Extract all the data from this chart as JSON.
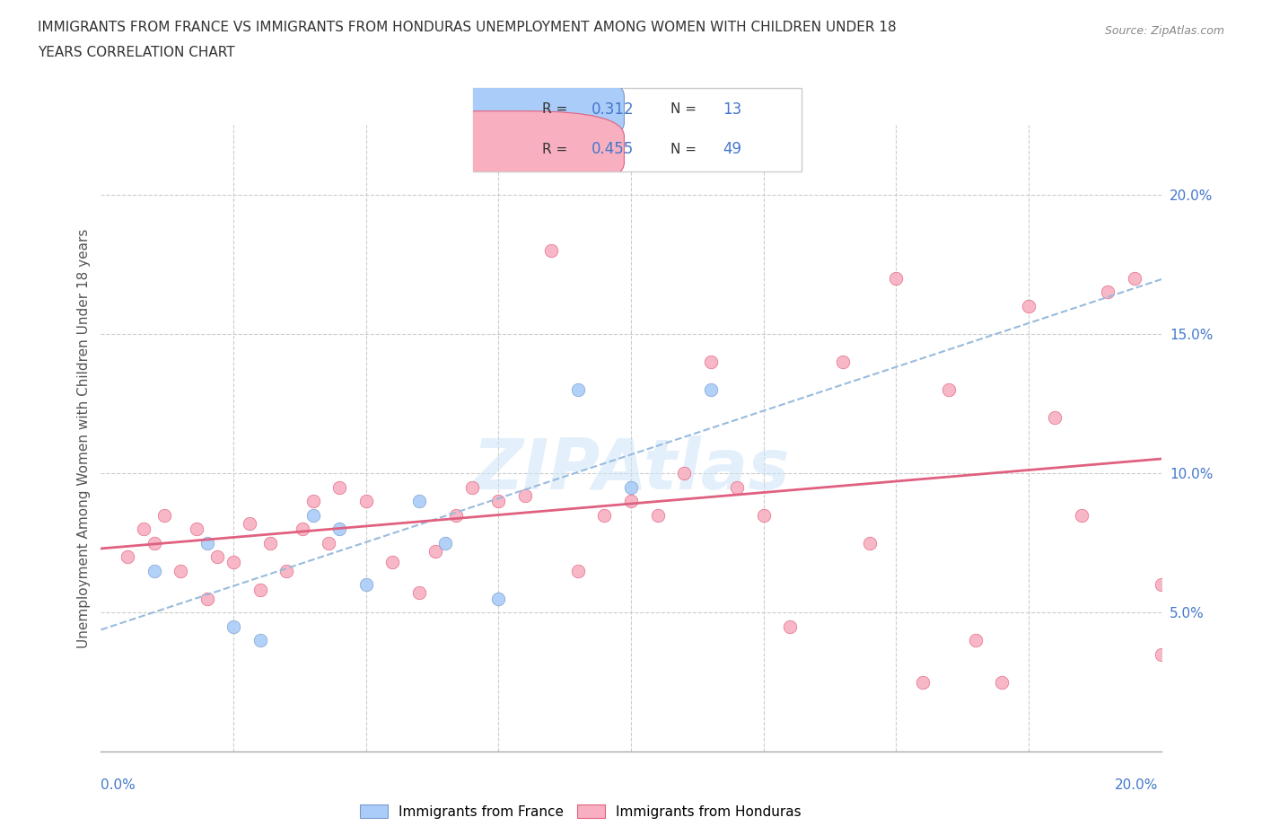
{
  "title_line1": "IMMIGRANTS FROM FRANCE VS IMMIGRANTS FROM HONDURAS UNEMPLOYMENT AMONG WOMEN WITH CHILDREN UNDER 18",
  "title_line2": "YEARS CORRELATION CHART",
  "source": "Source: ZipAtlas.com",
  "ylabel": "Unemployment Among Women with Children Under 18 years",
  "ytick_values": [
    0.05,
    0.1,
    0.15,
    0.2
  ],
  "xlim": [
    0.0,
    0.2
  ],
  "ylim": [
    0.0,
    0.225
  ],
  "france_color": "#aaccf8",
  "france_edge": "#7799cc",
  "honduras_color": "#f8b0c0",
  "honduras_edge": "#e06080",
  "france_line_color": "#99bbdd",
  "honduras_line_color": "#e06080",
  "france_R": 0.312,
  "france_N": 13,
  "honduras_R": 0.455,
  "honduras_N": 49,
  "watermark": "ZIPAtlas",
  "france_x": [
    0.01,
    0.02,
    0.025,
    0.03,
    0.04,
    0.045,
    0.05,
    0.06,
    0.065,
    0.075,
    0.09,
    0.1,
    0.115
  ],
  "france_y": [
    0.065,
    0.075,
    0.045,
    0.04,
    0.085,
    0.08,
    0.06,
    0.09,
    0.075,
    0.055,
    0.13,
    0.095,
    0.13
  ],
  "honduras_x": [
    0.005,
    0.008,
    0.01,
    0.012,
    0.015,
    0.018,
    0.02,
    0.022,
    0.025,
    0.028,
    0.03,
    0.032,
    0.035,
    0.038,
    0.04,
    0.043,
    0.045,
    0.05,
    0.055,
    0.06,
    0.063,
    0.067,
    0.07,
    0.075,
    0.08,
    0.085,
    0.09,
    0.095,
    0.1,
    0.105,
    0.11,
    0.115,
    0.12,
    0.125,
    0.13,
    0.14,
    0.145,
    0.15,
    0.155,
    0.16,
    0.165,
    0.17,
    0.175,
    0.18,
    0.185,
    0.19,
    0.195,
    0.2,
    0.2
  ],
  "honduras_y": [
    0.07,
    0.08,
    0.075,
    0.085,
    0.065,
    0.08,
    0.055,
    0.07,
    0.068,
    0.082,
    0.058,
    0.075,
    0.065,
    0.08,
    0.09,
    0.075,
    0.095,
    0.09,
    0.068,
    0.057,
    0.072,
    0.085,
    0.095,
    0.09,
    0.092,
    0.18,
    0.065,
    0.085,
    0.09,
    0.085,
    0.1,
    0.14,
    0.095,
    0.085,
    0.045,
    0.14,
    0.075,
    0.17,
    0.025,
    0.13,
    0.04,
    0.025,
    0.16,
    0.12,
    0.085,
    0.165,
    0.17,
    0.06,
    0.035
  ]
}
